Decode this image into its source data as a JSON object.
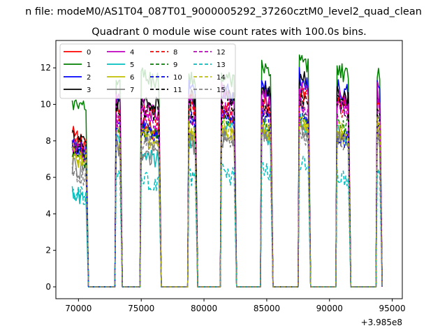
{
  "chart_data": {
    "type": "line",
    "suptitle": "n file: modeM0/AS1T04_087T01_9000005292_37260cztM0_level2_quad_clean",
    "title": "Quadrant 0 module wise count rates with 100.0s bins.",
    "xlabel": "",
    "ylabel": "",
    "x_offset_label": "+3.985e8",
    "xlim": [
      68200,
      95800
    ],
    "ylim": [
      -0.65,
      13.5
    ],
    "xticks": [
      70000,
      75000,
      80000,
      85000,
      90000,
      95000
    ],
    "xtick_labels": [
      "70000",
      "75000",
      "80000",
      "85000",
      "90000",
      "95000"
    ],
    "yticks": [
      0,
      2,
      4,
      6,
      8,
      10,
      12
    ],
    "ytick_labels": [
      "0",
      "2",
      "4",
      "6",
      "8",
      "10",
      "12"
    ],
    "grid": false,
    "legend_position": "top-left",
    "legend_columns": 4,
    "segments": [
      {
        "start": 69500,
        "end": 70600
      },
      {
        "start": 73000,
        "end": 73300
      },
      {
        "start": 75000,
        "end": 76400
      },
      {
        "start": 78800,
        "end": 79300
      },
      {
        "start": 81400,
        "end": 82400
      },
      {
        "start": 84600,
        "end": 85300
      },
      {
        "start": 87600,
        "end": 88300
      },
      {
        "start": 90600,
        "end": 91500
      },
      {
        "start": 93800,
        "end": 94000
      }
    ],
    "gap_level": 0,
    "series": [
      {
        "name": "0",
        "color": "#ff0000",
        "dash": false,
        "levels": [
          8.3,
          10.0,
          8.8,
          10.4,
          9.8,
          10.2,
          10.9,
          10.2,
          10.8
        ]
      },
      {
        "name": "1",
        "color": "#008000",
        "dash": false,
        "levels": [
          10.0,
          11.6,
          11.6,
          11.6,
          11.6,
          11.9,
          12.4,
          12.0,
          11.8
        ]
      },
      {
        "name": "2",
        "color": "#0000ff",
        "dash": false,
        "levels": [
          7.6,
          10.4,
          8.6,
          10.8,
          10.9,
          11.0,
          11.5,
          11.0,
          11.0
        ]
      },
      {
        "name": "3",
        "color": "#000000",
        "dash": false,
        "levels": [
          8.2,
          10.4,
          10.2,
          10.6,
          10.7,
          10.8,
          11.5,
          10.8,
          10.5
        ]
      },
      {
        "name": "4",
        "color": "#bf00bf",
        "dash": false,
        "levels": [
          7.6,
          10.5,
          9.8,
          10.2,
          10.8,
          10.6,
          11.0,
          10.5,
          10.7
        ]
      },
      {
        "name": "5",
        "color": "#00bfbf",
        "dash": false,
        "levels": [
          5.0,
          8.0,
          7.4,
          8.2,
          8.8,
          8.6,
          9.2,
          8.5,
          8.8
        ]
      },
      {
        "name": "6",
        "color": "#bfbf00",
        "dash": false,
        "levels": [
          7.2,
          8.2,
          8.2,
          8.4,
          8.6,
          8.7,
          9.0,
          8.5,
          8.6
        ]
      },
      {
        "name": "7",
        "color": "#808080",
        "dash": false,
        "levels": [
          6.6,
          7.8,
          7.4,
          8.0,
          8.2,
          8.4,
          8.6,
          8.2,
          8.4
        ]
      },
      {
        "name": "8",
        "color": "#ff0000",
        "dash": true,
        "levels": [
          8.0,
          9.6,
          9.6,
          9.8,
          9.8,
          9.8,
          10.4,
          10.0,
          10.2
        ]
      },
      {
        "name": "9",
        "color": "#008000",
        "dash": true,
        "levels": [
          7.4,
          8.8,
          8.6,
          9.0,
          9.2,
          9.2,
          9.6,
          9.2,
          9.4
        ]
      },
      {
        "name": "10",
        "color": "#0000ff",
        "dash": true,
        "levels": [
          7.8,
          9.2,
          8.8,
          9.2,
          9.5,
          9.4,
          9.8,
          8.4,
          9.2
        ]
      },
      {
        "name": "11",
        "color": "#000000",
        "dash": true,
        "levels": [
          7.8,
          9.6,
          9.8,
          9.9,
          10.0,
          10.0,
          10.4,
          10.1,
          10.2
        ]
      },
      {
        "name": "12",
        "color": "#bf00bf",
        "dash": true,
        "levels": [
          7.6,
          9.4,
          9.4,
          9.6,
          9.8,
          9.8,
          10.2,
          10.0,
          10.0
        ]
      },
      {
        "name": "13",
        "color": "#00bfbf",
        "dash": true,
        "levels": [
          5.2,
          6.2,
          5.9,
          6.2,
          6.4,
          6.5,
          6.8,
          6.1,
          6.3
        ]
      },
      {
        "name": "14",
        "color": "#bfbf00",
        "dash": true,
        "levels": [
          7.4,
          8.4,
          8.4,
          8.6,
          8.8,
          8.8,
          9.0,
          8.6,
          8.9
        ]
      },
      {
        "name": "15",
        "color": "#808080",
        "dash": true,
        "levels": [
          6.4,
          8.0,
          8.0,
          8.2,
          8.4,
          8.4,
          8.6,
          8.2,
          8.3
        ]
      }
    ]
  }
}
